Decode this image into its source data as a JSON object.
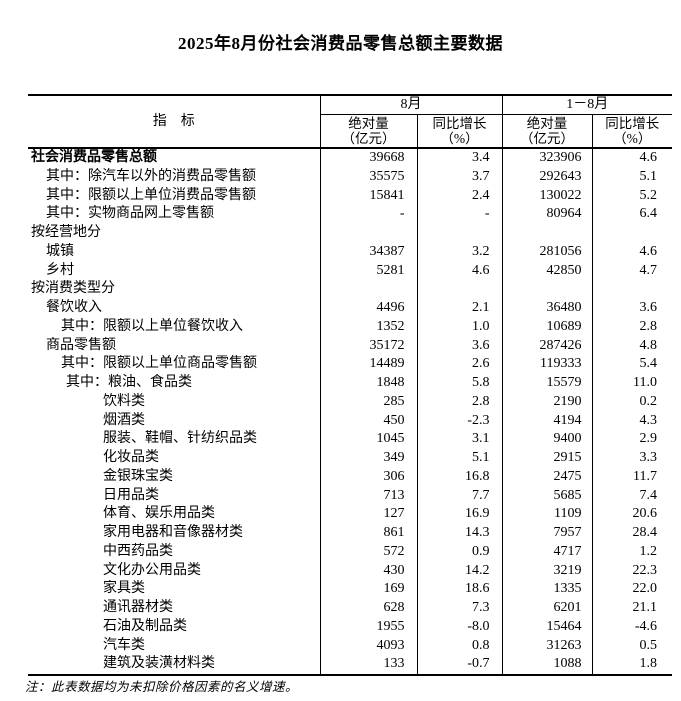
{
  "title": "2025年8月份社会消费品零售总额主要数据",
  "note": "注：此表数据均为未扣除价格因素的名义增速。",
  "table": {
    "indicator_header": "指　标",
    "col_groups": [
      {
        "label": "8月",
        "sub": [
          {
            "top": "绝对量",
            "bottom": "（亿元）"
          },
          {
            "top": "同比增长",
            "bottom": "（%）"
          }
        ]
      },
      {
        "label": "1－8月",
        "sub": [
          {
            "top": "绝对量",
            "bottom": "（亿元）"
          },
          {
            "top": "同比增长",
            "bottom": "（%）"
          }
        ]
      }
    ],
    "rows": [
      {
        "label": "社会消费品零售总额",
        "indent": 0,
        "bold": true,
        "values": [
          "39668",
          "3.4",
          "323906",
          "4.6"
        ]
      },
      {
        "label": "其中：除汽车以外的消费品零售额",
        "indent": 1,
        "bold": false,
        "values": [
          "35575",
          "3.7",
          "292643",
          "5.1"
        ]
      },
      {
        "label": "其中：限额以上单位消费品零售额",
        "indent": 1,
        "bold": false,
        "values": [
          "15841",
          "2.4",
          "130022",
          "5.2"
        ]
      },
      {
        "label": "其中：实物商品网上零售额",
        "indent": 1,
        "bold": false,
        "values": [
          "-",
          "-",
          "80964",
          "6.4"
        ]
      },
      {
        "label": "按经营地分",
        "indent": 0,
        "bold": false,
        "values": [
          "",
          "",
          "",
          ""
        ]
      },
      {
        "label": "城镇",
        "indent": 1,
        "bold": false,
        "values": [
          "34387",
          "3.2",
          "281056",
          "4.6"
        ]
      },
      {
        "label": "乡村",
        "indent": 1,
        "bold": false,
        "values": [
          "5281",
          "4.6",
          "42850",
          "4.7"
        ]
      },
      {
        "label": "按消费类型分",
        "indent": 0,
        "bold": false,
        "values": [
          "",
          "",
          "",
          ""
        ]
      },
      {
        "label": "餐饮收入",
        "indent": 1,
        "bold": false,
        "values": [
          "4496",
          "2.1",
          "36480",
          "3.6"
        ]
      },
      {
        "label": "其中：限额以上单位餐饮收入",
        "indent": 2,
        "bold": false,
        "values": [
          "1352",
          "1.0",
          "10689",
          "2.8"
        ]
      },
      {
        "label": "商品零售额",
        "indent": 1,
        "bold": false,
        "values": [
          "35172",
          "3.6",
          "287426",
          "4.8"
        ]
      },
      {
        "label": "其中：限额以上单位商品零售额",
        "indent": 2,
        "bold": false,
        "values": [
          "14489",
          "2.6",
          "119333",
          "5.4"
        ]
      },
      {
        "label": "其中：粮油、食品类",
        "indent": 3,
        "bold": false,
        "values": [
          "1848",
          "5.8",
          "15579",
          "11.0"
        ]
      },
      {
        "label": "饮料类",
        "indent": 4,
        "bold": false,
        "values": [
          "285",
          "2.8",
          "2190",
          "0.2"
        ]
      },
      {
        "label": "烟酒类",
        "indent": 4,
        "bold": false,
        "values": [
          "450",
          "-2.3",
          "4194",
          "4.3"
        ]
      },
      {
        "label": "服装、鞋帽、针纺织品类",
        "indent": 4,
        "bold": false,
        "values": [
          "1045",
          "3.1",
          "9400",
          "2.9"
        ]
      },
      {
        "label": "化妆品类",
        "indent": 4,
        "bold": false,
        "values": [
          "349",
          "5.1",
          "2915",
          "3.3"
        ]
      },
      {
        "label": "金银珠宝类",
        "indent": 4,
        "bold": false,
        "values": [
          "306",
          "16.8",
          "2475",
          "11.7"
        ]
      },
      {
        "label": "日用品类",
        "indent": 4,
        "bold": false,
        "values": [
          "713",
          "7.7",
          "5685",
          "7.4"
        ]
      },
      {
        "label": "体育、娱乐用品类",
        "indent": 4,
        "bold": false,
        "values": [
          "127",
          "16.9",
          "1109",
          "20.6"
        ]
      },
      {
        "label": "家用电器和音像器材类",
        "indent": 4,
        "bold": false,
        "values": [
          "861",
          "14.3",
          "7957",
          "28.4"
        ]
      },
      {
        "label": "中西药品类",
        "indent": 4,
        "bold": false,
        "values": [
          "572",
          "0.9",
          "4717",
          "1.2"
        ]
      },
      {
        "label": "文化办公用品类",
        "indent": 4,
        "bold": false,
        "values": [
          "430",
          "14.2",
          "3219",
          "22.3"
        ]
      },
      {
        "label": "家具类",
        "indent": 4,
        "bold": false,
        "values": [
          "169",
          "18.6",
          "1335",
          "22.0"
        ]
      },
      {
        "label": "通讯器材类",
        "indent": 4,
        "bold": false,
        "values": [
          "628",
          "7.3",
          "6201",
          "21.1"
        ]
      },
      {
        "label": "石油及制品类",
        "indent": 4,
        "bold": false,
        "values": [
          "1955",
          "-8.0",
          "15464",
          "-4.6"
        ]
      },
      {
        "label": "汽车类",
        "indent": 4,
        "bold": false,
        "values": [
          "4093",
          "0.8",
          "31263",
          "0.5"
        ]
      },
      {
        "label": "建筑及装潢材料类",
        "indent": 4,
        "bold": false,
        "values": [
          "133",
          "-0.7",
          "1088",
          "1.8"
        ]
      }
    ]
  }
}
